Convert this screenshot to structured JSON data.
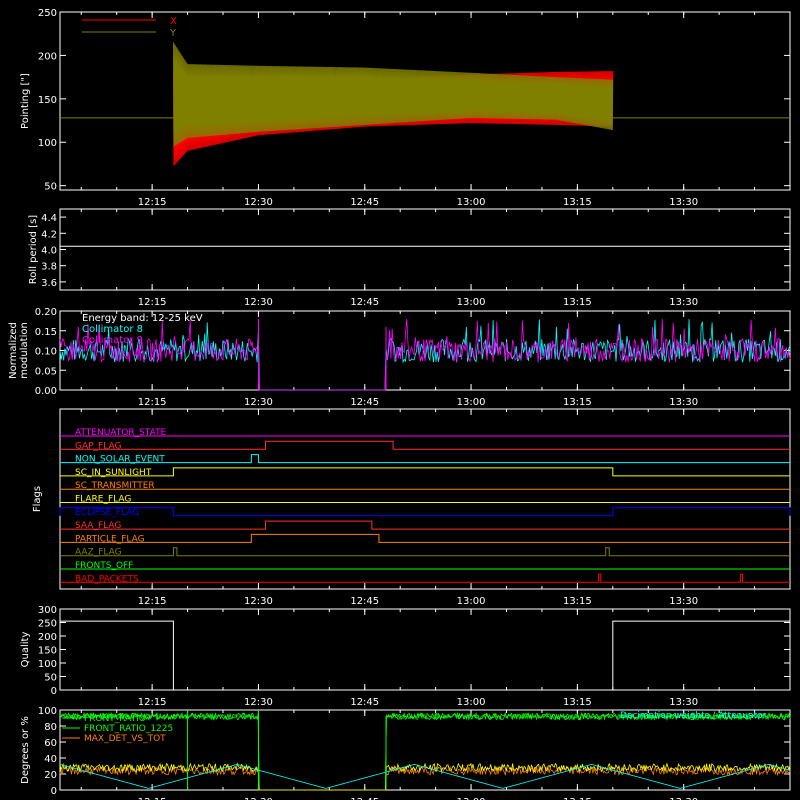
{
  "chart_data": [
    {
      "type": "line",
      "panel": "pointing",
      "ylabel": "Pointing [\"]",
      "ylim": [
        45,
        250
      ],
      "yticks": [
        "50",
        "100",
        "150",
        "200",
        "250"
      ],
      "xlim": [
        "12:02",
        "13:45"
      ],
      "xticks": [
        "12:15",
        "12:30",
        "12:45",
        "13:00",
        "13:15",
        "13:30"
      ],
      "legend": "top-left",
      "series": [
        {
          "name": "X",
          "color": "#ff0000",
          "envelope": {
            "time": [
              "12:18",
              "12:20",
              "12:30",
              "12:45",
              "13:00",
              "13:12",
              "13:20"
            ],
            "low": [
              72,
              90,
              108,
              118,
              122,
              120,
              118
            ],
            "high": [
              180,
              172,
              170,
              172,
              178,
              181,
              182
            ]
          }
        },
        {
          "name": "Y",
          "color": "#808000",
          "envelope": {
            "time": [
              "12:18",
              "12:20",
              "12:30",
              "12:45",
              "13:00",
              "13:12",
              "13:20"
            ],
            "low": [
              95,
              105,
              112,
              120,
              128,
              126,
              114
            ],
            "high": [
              215,
              190,
              188,
              186,
              180,
              175,
              172
            ]
          }
        }
      ],
      "baseline": 128
    },
    {
      "type": "line",
      "panel": "roll-period",
      "ylabel": "Roll period [s]",
      "ylim": [
        3.5,
        4.5
      ],
      "yticks": [
        "3.6",
        "3.8",
        "4.0",
        "4.2",
        "4.4"
      ],
      "series": [
        {
          "name": "",
          "color": "#ffffff",
          "value": 4.04
        }
      ]
    },
    {
      "type": "line",
      "panel": "modulation",
      "ylabel": "Normalized modulation",
      "ylim": [
        0,
        0.2
      ],
      "yticks": [
        "0.00",
        "0.05",
        "0.10",
        "0.15",
        "0.20"
      ],
      "annotations": [
        "Energy band: 12-25 keV",
        "Collimator 8",
        "Collimator 9"
      ],
      "gap": [
        "12:30",
        "12:48"
      ],
      "series": [
        {
          "name": "Collimator 8",
          "color": "#00ffff",
          "mean": 0.1
        },
        {
          "name": "Collimator 9",
          "color": "#ff00ff",
          "mean": 0.1
        }
      ]
    },
    {
      "type": "line",
      "panel": "flags",
      "ylabel": "Flags",
      "flags": [
        {
          "name": "ATTENUATOR_STATE",
          "color": "#ff00ff",
          "high": []
        },
        {
          "name": "GAP_FLAG",
          "color": "#ff3030",
          "high": [
            [
              "12:31",
              "12:49"
            ]
          ]
        },
        {
          "name": "NON_SOLAR_EVENT",
          "color": "#00ffff",
          "high": [
            [
              "12:29",
              "12:30"
            ]
          ]
        },
        {
          "name": "SC_IN_SUNLIGHT",
          "color": "#ffff00",
          "high": [
            [
              "12:18",
              "13:20"
            ]
          ]
        },
        {
          "name": "SC_TRANSMITTER",
          "color": "#ff8000",
          "high": []
        },
        {
          "name": "FLARE_FLAG",
          "color": "#ffff00",
          "high": []
        },
        {
          "name": "ECLIPSE_FLAG",
          "color": "#0000ff",
          "high": [
            [
              "12:02",
              "12:18"
            ],
            [
              "13:20",
              "13:45"
            ]
          ]
        },
        {
          "name": "SAA_FLAG",
          "color": "#ff3030",
          "high": [
            [
              "12:31",
              "12:46"
            ]
          ]
        },
        {
          "name": "PARTICLE_FLAG",
          "color": "#ff8000",
          "high": [
            [
              "12:29",
              "12:47"
            ]
          ]
        },
        {
          "name": "AAZ_FLAG",
          "color": "#808000",
          "high": [
            [
              "12:18",
              "12:18.5"
            ],
            [
              "13:19",
              "13:19.5"
            ]
          ]
        },
        {
          "name": "FRONTS_OFF",
          "color": "#00ff00",
          "high": []
        },
        {
          "name": "BAD_PACKETS",
          "color": "#ff0000",
          "high": [
            [
              "13:18",
              "13:18.3"
            ],
            [
              "13:38",
              "13:38.3"
            ]
          ]
        }
      ]
    },
    {
      "type": "line",
      "panel": "quality",
      "ylabel": "Quality",
      "ylim": [
        0,
        300
      ],
      "yticks": [
        "0",
        "50",
        "100",
        "150",
        "200",
        "250",
        "300"
      ],
      "series": [
        {
          "name": "",
          "color": "#ffffff",
          "steps": [
            [
              "12:02",
              255
            ],
            [
              "12:18",
              0
            ],
            [
              "13:20",
              255
            ],
            [
              "13:45",
              255
            ]
          ]
        }
      ]
    },
    {
      "type": "line",
      "panel": "degrees",
      "ylabel": "Degrees or %",
      "ylim": [
        0,
        100
      ],
      "yticks": [
        "0",
        "20",
        "40",
        "60",
        "80",
        "100"
      ],
      "legend": "top-left",
      "series": [
        {
          "name": "FRONT_RATIO",
          "color": "#00ff00",
          "level": 92
        },
        {
          "name": "FRONT_RATIO_1225",
          "color": "#00ff00",
          "level": 92
        },
        {
          "name": "MAX_DET_VS_TOT",
          "color": "#ff8000",
          "level": 24
        },
        {
          "name": "",
          "color": "#ffff00",
          "level": 28
        },
        {
          "name": "",
          "color": "#00ffff",
          "level": 30
        }
      ],
      "annotations": [
        "Decimation weights / Attenuator"
      ]
    }
  ],
  "colors": {
    "axis": "#ffffff",
    "background": "#000000"
  }
}
